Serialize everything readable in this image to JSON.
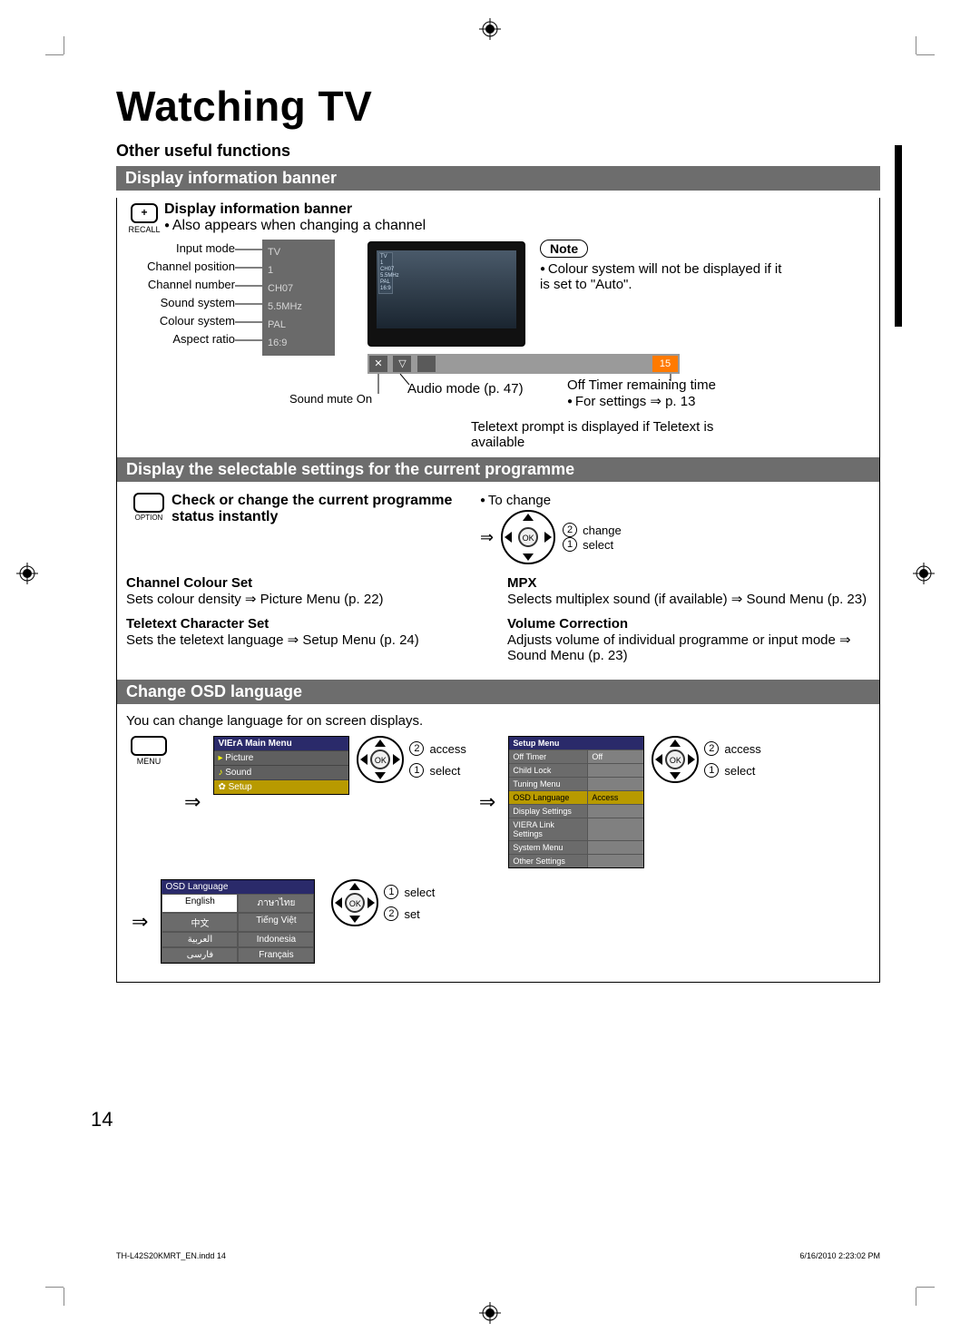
{
  "page": {
    "title": "Watching TV",
    "subtitle": "Other useful functions",
    "number": "14"
  },
  "section1": {
    "bar": "Display information banner",
    "icon_label": "RECALL",
    "heading": "Display information banner",
    "line1": "Also appears when changing a channel",
    "labels": [
      "Input mode",
      "Channel position",
      "Channel number",
      "Sound system",
      "Colour system",
      "Aspect ratio"
    ],
    "values": [
      "TV",
      "1",
      "CH07",
      "5.5MHz",
      "PAL",
      "16:9"
    ],
    "sound_mute": "Sound mute On",
    "note_title": "Note",
    "note_body": "Colour system will not be displayed if it is set to \"Auto\".",
    "audio_mode": "Audio mode (p. 47)",
    "off_timer": "Off Timer remaining time",
    "off_timer_ref": "For settings ⇒ p. 13",
    "teletext_prompt": "Teletext prompt is displayed if Teletext is available",
    "timer_val": "15"
  },
  "section2": {
    "bar": "Display the selectable settings for the current programme",
    "icon_label": "OPTION",
    "heading": "Check or change the current programme status instantly",
    "to_change": "To change",
    "change": "change",
    "select": "select",
    "items": [
      {
        "t": "Channel Colour Set",
        "d": "Sets colour density ⇒ Picture Menu (p. 22)"
      },
      {
        "t": "Teletext Character Set",
        "d": "Sets the teletext language ⇒ Setup Menu (p. 24)"
      },
      {
        "t": "MPX",
        "d": "Selects multiplex sound (if available) ⇒ Sound Menu (p. 23)"
      },
      {
        "t": "Volume Correction",
        "d": "Adjusts volume of individual programme or input mode ⇒ Sound Menu (p. 23)"
      }
    ]
  },
  "section3": {
    "bar": "Change OSD language",
    "intro": "You can change language for on screen displays.",
    "menu_label": "MENU",
    "main_menu_title": "VIErA Main Menu",
    "main_menu_items": [
      "Picture",
      "Sound",
      "Setup"
    ],
    "access": "access",
    "select": "select",
    "set": "set",
    "setup_title": "Setup Menu",
    "setup_rows": [
      {
        "k": "Off Timer",
        "v": "Off"
      },
      {
        "k": "Child Lock",
        "v": ""
      },
      {
        "k": "Tuning Menu",
        "v": ""
      },
      {
        "k": "OSD Language",
        "v": "Access",
        "sel": true
      },
      {
        "k": "Display Settings",
        "v": ""
      },
      {
        "k": "VIERA Link Settings",
        "v": ""
      },
      {
        "k": "System Menu",
        "v": ""
      },
      {
        "k": "Other Settings",
        "v": ""
      }
    ],
    "osd_lang_title": "OSD Language",
    "langs": [
      "English",
      "ภาษาไทย",
      "中文",
      "Tiếng Việt",
      "العربية",
      "Indonesia",
      "فارسی",
      "Français"
    ]
  },
  "footer": {
    "left": "TH-L42S20KMRT_EN.indd   14",
    "right": "6/16/2010   2:23:02 PM"
  },
  "colors": {
    "bar_bg": "#6d6d6d",
    "banner_bg": "#6a6a6a",
    "menu_hdr": "#2a2a6a",
    "sel_bg": "#b89a00",
    "timer_bg": "#ff7a00"
  }
}
